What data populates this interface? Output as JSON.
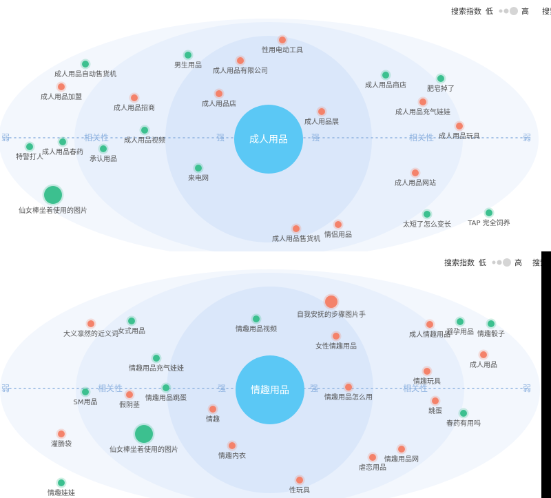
{
  "legend": {
    "title": "搜索指数",
    "low": "低",
    "high": "高",
    "cut": "搜索"
  },
  "axis": {
    "weak": "弱",
    "relevance": "相关性",
    "strong": "强"
  },
  "colors": {
    "green": "#3cc08f",
    "red": "#f4826a",
    "center": "#5bc8f5",
    "axis": "#8fb3e0"
  },
  "chart_data": [
    {
      "type": "scatter",
      "title": "成人用品",
      "words": [
        {
          "text": "性用电动工具",
          "color": "red",
          "size": "s"
        },
        {
          "text": "男生用品",
          "color": "green",
          "size": "s"
        },
        {
          "text": "成人用品有限公司",
          "color": "red",
          "size": "s"
        },
        {
          "text": "成人用品自动售货机",
          "color": "green",
          "size": "s"
        },
        {
          "text": "成人用品加盟",
          "color": "red",
          "size": "s"
        },
        {
          "text": "成人用品招商",
          "color": "red",
          "size": "s"
        },
        {
          "text": "成人用品店",
          "color": "red",
          "size": "s"
        },
        {
          "text": "成人用品商店",
          "color": "green",
          "size": "s"
        },
        {
          "text": "肥皂掉了",
          "color": "green",
          "size": "s"
        },
        {
          "text": "成人用品充气娃娃",
          "color": "red",
          "size": "s"
        },
        {
          "text": "成人用品展",
          "color": "red",
          "size": "s"
        },
        {
          "text": "成人用品视频",
          "color": "green",
          "size": "s"
        },
        {
          "text": "成人用品玩具",
          "color": "red",
          "size": "s"
        },
        {
          "text": "特警打人",
          "color": "green",
          "size": "s"
        },
        {
          "text": "成人用品春药",
          "color": "green",
          "size": "s"
        },
        {
          "text": "承认用品",
          "color": "green",
          "size": "s"
        },
        {
          "text": "来电网",
          "color": "green",
          "size": "s"
        },
        {
          "text": "成人用品网站",
          "color": "red",
          "size": "s"
        },
        {
          "text": "仙女棒坐着使用的图片",
          "color": "green",
          "size": "l"
        },
        {
          "text": "太短了怎么变长",
          "color": "green",
          "size": "s"
        },
        {
          "text": "TAP 完全饲养",
          "color": "green",
          "size": "s"
        },
        {
          "text": "成人用品售货机",
          "color": "red",
          "size": "s"
        },
        {
          "text": "情侣用品",
          "color": "red",
          "size": "s"
        }
      ]
    },
    {
      "type": "scatter",
      "title": "情趣用品",
      "words": [
        {
          "text": "自我安抚的步骤图片手",
          "color": "red",
          "size": "m"
        },
        {
          "text": "大义凛然的近义词",
          "color": "red",
          "size": "s"
        },
        {
          "text": "女式用品",
          "color": "green",
          "size": "s"
        },
        {
          "text": "情趣用品视频",
          "color": "green",
          "size": "s"
        },
        {
          "text": "女性情趣用品",
          "color": "red",
          "size": "s"
        },
        {
          "text": "成人情趣用品",
          "color": "red",
          "size": "s"
        },
        {
          "text": "避孕用品",
          "color": "green",
          "size": "s"
        },
        {
          "text": "情趣骰子",
          "color": "green",
          "size": "s"
        },
        {
          "text": "情趣用品充气娃娃",
          "color": "green",
          "size": "s"
        },
        {
          "text": "成人用品",
          "color": "red",
          "size": "s"
        },
        {
          "text": "情趣玩具",
          "color": "red",
          "size": "s"
        },
        {
          "text": "SM用品",
          "color": "green",
          "size": "s"
        },
        {
          "text": "假阴茎",
          "color": "red",
          "size": "s"
        },
        {
          "text": "情趣用品跳蛋",
          "color": "green",
          "size": "s"
        },
        {
          "text": "情趣用品怎么用",
          "color": "red",
          "size": "s"
        },
        {
          "text": "跳蛋",
          "color": "red",
          "size": "s"
        },
        {
          "text": "情趣",
          "color": "red",
          "size": "s"
        },
        {
          "text": "春药有用吗",
          "color": "green",
          "size": "s"
        },
        {
          "text": "灌肠袋",
          "color": "red",
          "size": "s"
        },
        {
          "text": "仙女棒坐着使用的图片",
          "color": "green",
          "size": "l"
        },
        {
          "text": "情趣内衣",
          "color": "red",
          "size": "s"
        },
        {
          "text": "情趣用品网",
          "color": "red",
          "size": "s"
        },
        {
          "text": "虐恋用品",
          "color": "red",
          "size": "s"
        },
        {
          "text": "情趣娃娃",
          "color": "green",
          "size": "s"
        },
        {
          "text": "性玩具",
          "color": "red",
          "size": "s"
        }
      ]
    }
  ]
}
